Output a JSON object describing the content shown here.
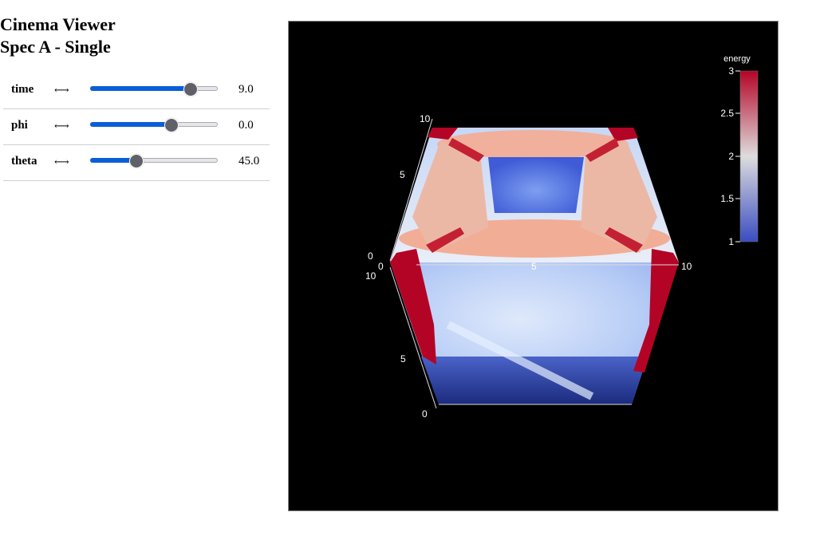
{
  "app": {
    "title": "Cinema Viewer",
    "subtitle": "Spec A - Single"
  },
  "controls": [
    {
      "name": "time",
      "arrow": "⟷",
      "value": "9.0",
      "slider_fraction": 0.79
    },
    {
      "name": "phi",
      "arrow": "⟷",
      "value": "0.0",
      "slider_fraction": 0.64
    },
    {
      "name": "theta",
      "arrow": "⟷",
      "value": "45.0",
      "slider_fraction": 0.36
    }
  ],
  "viewer": {
    "colorbar": {
      "title": "energy",
      "ticks": [
        "3",
        "2.5",
        "2",
        "1.5",
        "1"
      ],
      "colors": {
        "high": "#b40426",
        "mid": "#dddddd",
        "low": "#3b4cc0"
      }
    },
    "axis_labels": {
      "top_10": "10",
      "left_5": "5",
      "left_0a": "0",
      "left_0b": "0",
      "left_10": "10",
      "mid_5": "5",
      "right_10": "10",
      "bottom_5": "5",
      "bottom_0": "0"
    }
  }
}
